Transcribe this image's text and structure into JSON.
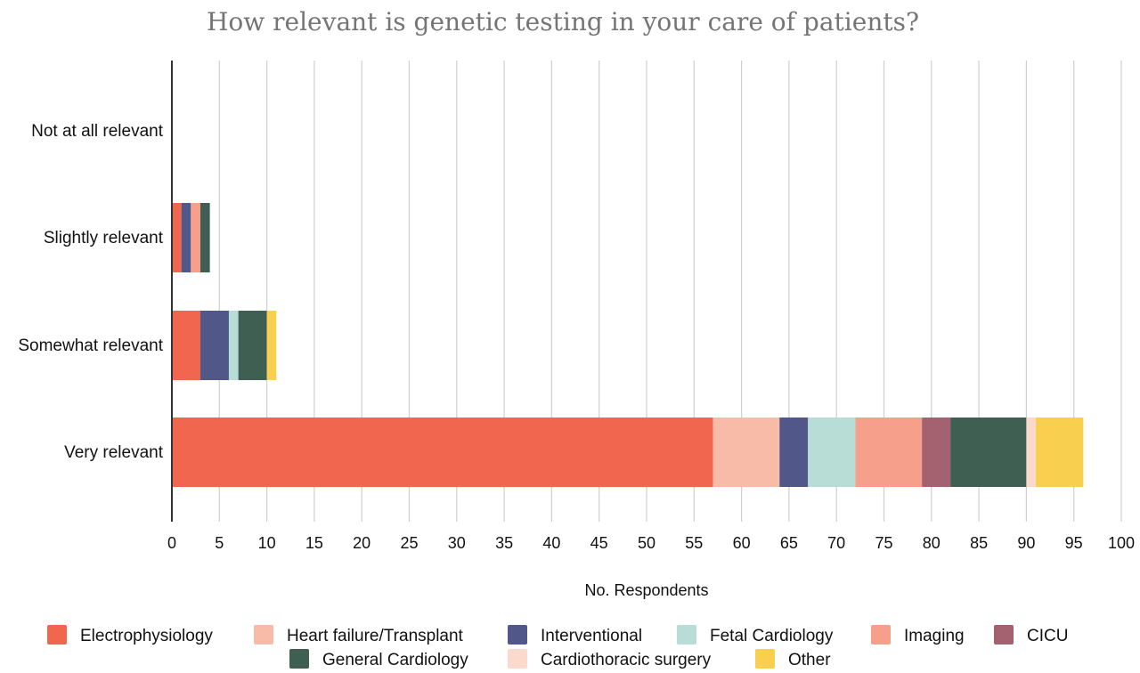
{
  "chart_data": {
    "type": "bar",
    "orientation": "horizontal",
    "stacked": true,
    "title": "How relevant is genetic testing in your care of patients?",
    "xlabel": "No. Respondents",
    "ylabel": "",
    "xlim": [
      0,
      100
    ],
    "xticks": [
      0,
      5,
      10,
      15,
      20,
      25,
      30,
      35,
      40,
      45,
      50,
      55,
      60,
      65,
      70,
      75,
      80,
      85,
      90,
      95,
      100
    ],
    "grid": true,
    "legend_position": "bottom",
    "categories": [
      "Not at all relevant",
      "Slightly relevant",
      "Somewhat relevant",
      "Very relevant"
    ],
    "series": [
      {
        "name": "Electrophysiology",
        "color": "#f0664e",
        "values": [
          0,
          1,
          3,
          57
        ]
      },
      {
        "name": "Heart failure/Transplant",
        "color": "#f7bba8",
        "values": [
          0,
          0,
          0,
          7
        ]
      },
      {
        "name": "Interventional",
        "color": "#515889",
        "values": [
          0,
          1,
          3,
          3
        ]
      },
      {
        "name": "Fetal Cardiology",
        "color": "#b7ddd6",
        "values": [
          0,
          0,
          1,
          5
        ]
      },
      {
        "name": "Imaging",
        "color": "#f6a08c",
        "values": [
          0,
          1,
          0,
          7
        ]
      },
      {
        "name": "CICU",
        "color": "#a4616f",
        "values": [
          0,
          0,
          0,
          3
        ]
      },
      {
        "name": "General Cardiology",
        "color": "#3e5f51",
        "values": [
          0,
          1,
          3,
          8
        ]
      },
      {
        "name": "Cardiothoracic surgery",
        "color": "#fbd9cc",
        "values": [
          0,
          0,
          0,
          1
        ]
      },
      {
        "name": "Other",
        "color": "#f9cf4f",
        "values": [
          0,
          0,
          1,
          5
        ]
      }
    ]
  }
}
